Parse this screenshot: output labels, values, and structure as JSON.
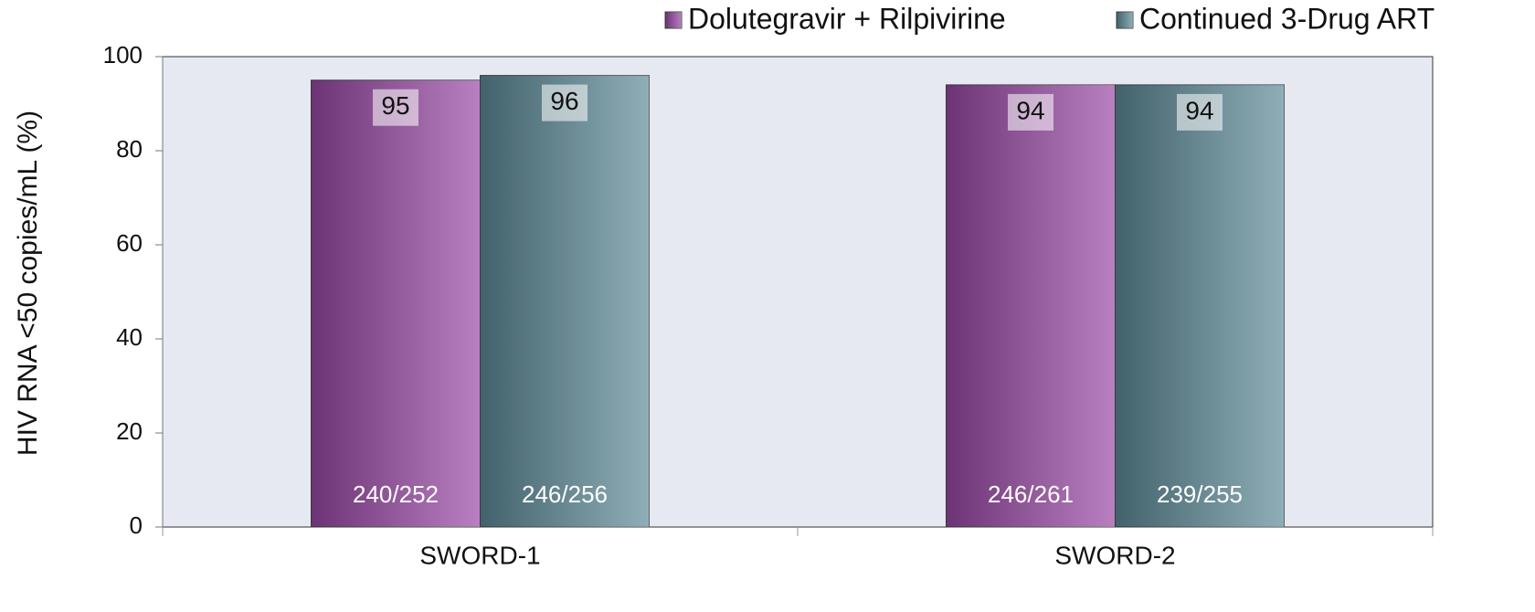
{
  "chart_data": {
    "type": "bar",
    "y_label": "HIV RNA <50 copies/mL (%)",
    "categories": [
      "SWORD-1",
      "SWORD-2"
    ],
    "series": [
      {
        "name": "Dolutegravir + Rilpivirine",
        "color": "#9a4aa6",
        "values": [
          95,
          94
        ],
        "n_labels": [
          "240/252",
          "246/261"
        ]
      },
      {
        "name": "Continued 3-Drug ART",
        "color": "#5f8c99",
        "values": [
          96,
          94
        ],
        "n_labels": [
          "246/256",
          "239/255"
        ]
      }
    ],
    "ylim": [
      0,
      100
    ],
    "yticks": [
      0,
      20,
      40,
      60,
      80,
      100
    ],
    "legend": "top-right"
  }
}
